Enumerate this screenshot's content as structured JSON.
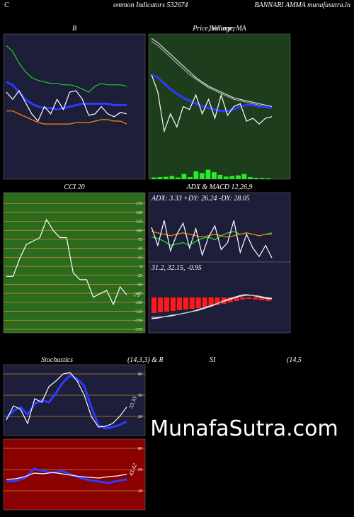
{
  "header": {
    "left": "C",
    "title": "ommon Indicators 532674",
    "right": "BANNARI AMMA munafasutra.in"
  },
  "stoch_title": {
    "a": "Stochastics",
    "b": "(14,3,3) & R",
    "c": "SI",
    "d": "(14,5"
  },
  "watermark": "MunafaSutra.com",
  "chart_data": [
    {
      "type": "line",
      "title": "B",
      "background": "#1c1e3a",
      "ylim": [
        0,
        100
      ],
      "series": [
        {
          "color": "#22cc22",
          "values": [
            92,
            88,
            80,
            74,
            70,
            68,
            67,
            66,
            66,
            65,
            65,
            64,
            62,
            60,
            64,
            66,
            65,
            65,
            65,
            64
          ]
        },
        {
          "color": "#2b3cff",
          "values": [
            67,
            65,
            60,
            55,
            52,
            50,
            49,
            49,
            48,
            49,
            50,
            51,
            52,
            52,
            52,
            52,
            52,
            51,
            51,
            51
          ]
        },
        {
          "color": "#ff8c00",
          "values": [
            47,
            47,
            45,
            43,
            41,
            39,
            38,
            38,
            38,
            38,
            38,
            39,
            39,
            39,
            40,
            41,
            41,
            40,
            40,
            38
          ]
        },
        {
          "color": "#ffffff",
          "values": [
            60,
            55,
            61,
            53,
            45,
            40,
            50,
            45,
            55,
            48,
            60,
            61,
            55,
            44,
            45,
            50,
            45,
            43,
            46,
            45
          ]
        }
      ]
    },
    {
      "type": "line",
      "title": "Price, Volume, MA",
      "overlay_title": "Bollinger",
      "background": "#1e3d1c",
      "ylim": [
        0,
        100
      ],
      "series": [
        {
          "color": "#dddddd",
          "values": [
            97,
            94,
            90,
            86,
            82,
            78,
            74,
            70,
            67,
            64,
            62,
            60,
            58,
            56,
            55,
            54,
            53,
            52,
            51,
            50
          ]
        },
        {
          "color": "#aaaaaa",
          "values": [
            95,
            92,
            88,
            84,
            80,
            76,
            72,
            69,
            66,
            63,
            61,
            59,
            57,
            55,
            54,
            53,
            52,
            51,
            50,
            49
          ]
        },
        {
          "color": "#2b3cff",
          "values": [
            72,
            70,
            66,
            62,
            59,
            56,
            54,
            52,
            50,
            49,
            48,
            47,
            47,
            48,
            50,
            51,
            51,
            50,
            50,
            49
          ]
        },
        {
          "color": "#ffffff",
          "values": [
            72,
            60,
            33,
            45,
            36,
            50,
            48,
            58,
            45,
            55,
            42,
            58,
            44,
            50,
            52,
            40,
            42,
            38,
            42,
            43
          ]
        }
      ],
      "bars": {
        "color": "#22ee22",
        "ylim": [
          0,
          100
        ],
        "values": [
          10,
          12,
          14,
          18,
          10,
          30,
          12,
          45,
          35,
          55,
          40,
          25,
          15,
          18,
          22,
          30,
          12,
          8,
          6,
          5
        ]
      }
    },
    {
      "type": "line",
      "title": "CCI 20",
      "background": "#2a6b1e",
      "grid": true,
      "grid_color": "#c8862a",
      "ylim": [
        -185,
        205
      ],
      "yticks": [
        175,
        150,
        125,
        100,
        75,
        50,
        25,
        0,
        -25,
        -50,
        -75,
        -100,
        -125,
        -150,
        -175
      ],
      "end_label_series": 0,
      "series": [
        {
          "color": "#ffffff",
          "values": [
            -28,
            -28,
            22,
            61,
            70,
            80,
            130,
            100,
            80,
            80,
            -18,
            -37,
            -37,
            -86,
            -76,
            -67,
            -106,
            -57,
            -79
          ]
        }
      ]
    },
    {
      "type": "line",
      "title": "ADX  & MACD 12,26,9",
      "subtitle": "ADX: 3.33 +DY: 26.24 -DY: 28.05",
      "background": "#1c1e3a",
      "ylim": [
        0,
        50
      ],
      "series": [
        {
          "color": "#22ee22",
          "values": [
            18,
            17,
            15,
            12,
            13,
            14,
            12,
            15,
            17,
            18,
            16,
            19,
            21,
            22,
            20,
            21,
            20,
            19,
            20,
            21
          ]
        },
        {
          "color": "#ff8c00",
          "values": [
            22,
            21,
            20,
            19,
            20,
            21,
            20,
            19,
            18,
            19,
            20,
            19,
            18,
            19,
            20,
            21,
            20,
            19,
            20,
            20
          ]
        },
        {
          "color": "#ffffff",
          "values": [
            25,
            12,
            30,
            8,
            20,
            28,
            10,
            24,
            5,
            18,
            26,
            9,
            14,
            30,
            7,
            20,
            10,
            4,
            12,
            3
          ]
        }
      ]
    },
    {
      "type": "line",
      "subtitle": "31.2, 32.15, -0.95",
      "background": "#1c1e3a",
      "ylim": [
        -50,
        50
      ],
      "series": [
        {
          "color": "#ffffff",
          "values": [
            -30,
            -29,
            -27,
            -26,
            -24,
            -22,
            -20,
            -18,
            -15,
            -12,
            -8,
            -4,
            -1,
            2,
            4,
            3,
            1,
            -1,
            -2
          ]
        },
        {
          "color": "#cccccc",
          "values": [
            -28,
            -28,
            -27,
            -25,
            -24,
            -22,
            -20,
            -17,
            -14,
            -11,
            -8,
            -5,
            -2,
            1,
            3,
            3,
            2,
            0,
            -1
          ]
        }
      ],
      "bars": {
        "color": "#ff1a1a",
        "values": [
          -22,
          -21,
          -20,
          -19,
          -18,
          -17,
          -16,
          -15,
          -13,
          -12,
          -11,
          -9,
          -7,
          -5,
          -3,
          -2,
          -3,
          -4,
          -5
        ]
      }
    },
    {
      "type": "line",
      "background": "#1c1e3a",
      "grid": true,
      "grid_color": "#c8862a",
      "ylim": [
        -7,
        93
      ],
      "yticks": [
        80,
        50,
        20
      ],
      "end_label_series": 1,
      "rotate_label": true,
      "series": [
        {
          "color": "#2b3cff",
          "values": [
            18,
            28,
            33,
            23,
            38,
            43,
            40,
            53,
            68,
            78,
            73,
            63,
            33,
            8,
            3,
            5,
            8,
            13
          ]
        },
        {
          "color": "#ffffff",
          "values": [
            15,
            35,
            30,
            10,
            45,
            40,
            62,
            70,
            80,
            82,
            70,
            50,
            20,
            5,
            6,
            10,
            20,
            33.33
          ]
        }
      ]
    },
    {
      "type": "line",
      "background": "#8b0000",
      "grid": true,
      "grid_color": "#c8862a",
      "ylim": [
        -7,
        93
      ],
      "yticks": [
        80,
        50,
        20
      ],
      "end_label_series": 1,
      "rotate_label": true,
      "series": [
        {
          "color": "#2b3cff",
          "values": [
            33,
            34,
            38,
            51,
            48,
            45,
            48,
            43,
            38,
            35,
            33,
            31,
            34,
            36
          ]
        },
        {
          "color": "#ffffff",
          "values": [
            36,
            37,
            40,
            45,
            44,
            46,
            44,
            42,
            40,
            39,
            38,
            40,
            41,
            43.42
          ]
        }
      ]
    }
  ]
}
